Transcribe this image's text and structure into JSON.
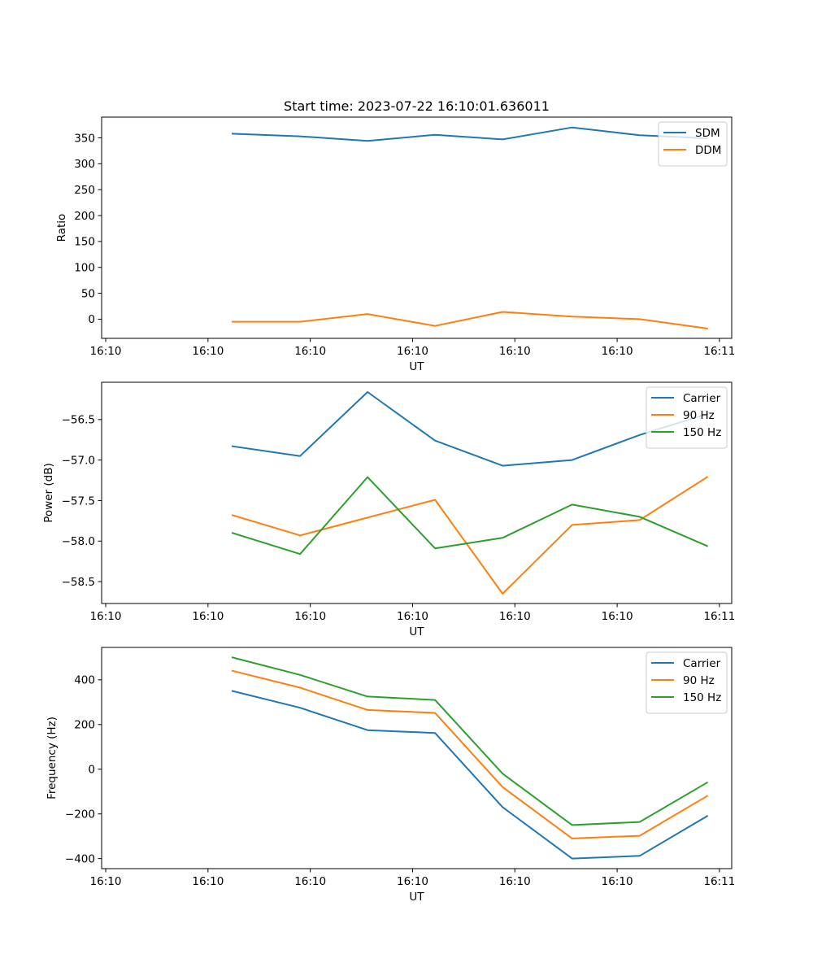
{
  "title": "Start time: 2023-07-22 16:10:01.636011",
  "colors": {
    "blue": "#1f77b4",
    "orange": "#ff7f0e",
    "green": "#2ca02c"
  },
  "chart_data": [
    {
      "type": "line",
      "title": "Start time: 2023-07-22 16:10:01.636011",
      "xlabel": "UT",
      "ylabel": "Ratio",
      "x": [
        0.62,
        0.95,
        1.28,
        1.61,
        1.94,
        2.28,
        2.61,
        2.94
      ],
      "xlim": [
        -0.02,
        3.06
      ],
      "xticks": [
        0.0,
        0.5,
        1.0,
        1.5,
        2.0,
        2.5,
        3.0
      ],
      "xtick_labels": [
        "16:10",
        "16:10",
        "16:10",
        "16:10",
        "16:10",
        "16:10",
        "16:11"
      ],
      "ylim": [
        -37,
        390
      ],
      "yticks": [
        0,
        50,
        100,
        150,
        200,
        250,
        300,
        350
      ],
      "ytick_labels": [
        "0",
        "50",
        "100",
        "150",
        "200",
        "250",
        "300",
        "350"
      ],
      "legend_position": "upper right",
      "series": [
        {
          "name": "SDM",
          "color": "#1f77b4",
          "values": [
            358,
            353,
            344,
            356,
            347,
            370,
            355,
            349
          ]
        },
        {
          "name": "DDM",
          "color": "#ff7f0e",
          "values": [
            -5,
            -5,
            10,
            -13,
            14,
            5,
            0,
            -18
          ]
        }
      ]
    },
    {
      "type": "line",
      "title": "",
      "xlabel": "UT",
      "ylabel": "Power (dB)",
      "x": [
        0.62,
        0.95,
        1.28,
        1.61,
        1.94,
        2.28,
        2.61,
        2.94
      ],
      "xlim": [
        -0.02,
        3.06
      ],
      "xticks": [
        0.0,
        0.5,
        1.0,
        1.5,
        2.0,
        2.5,
        3.0
      ],
      "xtick_labels": [
        "16:10",
        "16:10",
        "16:10",
        "16:10",
        "16:10",
        "16:10",
        "16:11"
      ],
      "ylim": [
        -58.77,
        -56.04
      ],
      "yticks": [
        -58.5,
        -58.0,
        -57.5,
        -57.0,
        -56.5
      ],
      "ytick_labels": [
        "−58.5",
        "−58.0",
        "−57.5",
        "−57.0",
        "−56.5"
      ],
      "legend_position": "upper right",
      "series": [
        {
          "name": "Carrier",
          "color": "#1f77b4",
          "values": [
            -56.83,
            -56.95,
            -56.16,
            -56.76,
            -57.07,
            -57.0,
            -56.69,
            -56.43
          ]
        },
        {
          "name": "90 Hz",
          "color": "#ff7f0e",
          "values": [
            -57.68,
            -57.93,
            -57.71,
            -57.49,
            -58.65,
            -57.8,
            -57.74,
            -57.21
          ]
        },
        {
          "name": "150 Hz",
          "color": "#2ca02c",
          "values": [
            -57.9,
            -58.16,
            -57.21,
            -58.09,
            -57.96,
            -57.55,
            -57.7,
            -58.06
          ]
        }
      ]
    },
    {
      "type": "line",
      "title": "",
      "xlabel": "UT",
      "ylabel": "Frequency (Hz)",
      "x": [
        0.62,
        0.95,
        1.28,
        1.61,
        1.94,
        2.28,
        2.61,
        2.94
      ],
      "xlim": [
        -0.02,
        3.06
      ],
      "xticks": [
        0.0,
        0.5,
        1.0,
        1.5,
        2.0,
        2.5,
        3.0
      ],
      "xtick_labels": [
        "16:10",
        "16:10",
        "16:10",
        "16:10",
        "16:10",
        "16:10",
        "16:11"
      ],
      "ylim": [
        -445,
        545
      ],
      "yticks": [
        -400,
        -200,
        0,
        200,
        400
      ],
      "ytick_labels": [
        "−400",
        "−200",
        "0",
        "200",
        "400"
      ],
      "legend_position": "upper right",
      "series": [
        {
          "name": "Carrier",
          "color": "#1f77b4",
          "values": [
            350,
            275,
            175,
            162,
            -170,
            -400,
            -388,
            -210
          ]
        },
        {
          "name": "90 Hz",
          "color": "#ff7f0e",
          "values": [
            440,
            365,
            265,
            252,
            -80,
            -310,
            -298,
            -120
          ]
        },
        {
          "name": "150 Hz",
          "color": "#2ca02c",
          "values": [
            500,
            422,
            325,
            310,
            -20,
            -250,
            -236,
            -60
          ]
        }
      ]
    }
  ]
}
